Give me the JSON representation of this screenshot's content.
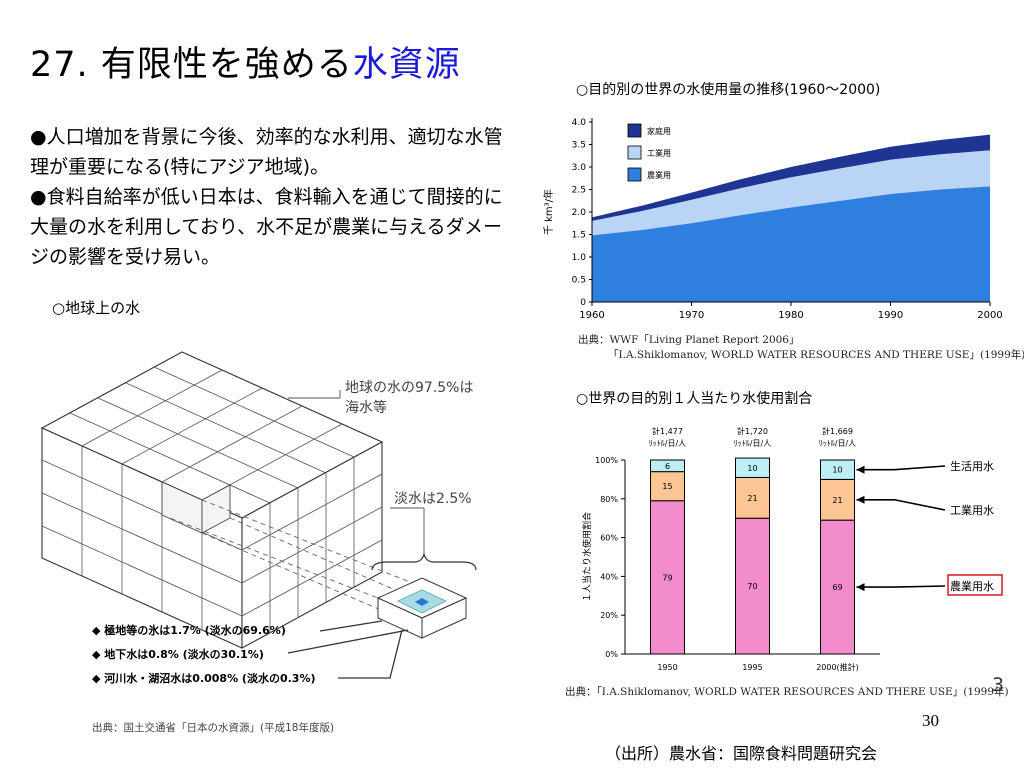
{
  "title": {
    "main": "27. 有限性を強める",
    "accent": "水資源"
  },
  "bullets": [
    "●人口増加を背景に今後、効率的な水利用、適切な水管理が重要になる(特にアジア地域)。",
    "●食料自給率が低い日本は、食料輸入を通じて間接的に大量の水を利用しており、水不足が農業に与えるダメージの影響を受け易い。"
  ],
  "earth_water": {
    "heading": "○地球上の水",
    "callout_seawater_line1": "地球の水の97.5%は",
    "callout_seawater_line2": "海水等",
    "callout_freshwater": "淡水は2.5%",
    "items": [
      "◆ 極地等の氷は1.7% (淡水の69.6%)",
      "◆ 地下水は0.8% (淡水の30.1%)",
      "◆ 河川水・湖沼水は0.008% (淡水の0.3%)"
    ],
    "source": "出典：国土交通省「日本の水資源」(平成18年度版)"
  },
  "chart_data": [
    {
      "type": "area",
      "title": "○目的別の世界の水使用量の推移(1960〜2000)",
      "ylabel": "千 km³/年",
      "x": [
        1960,
        1965,
        1970,
        1975,
        1980,
        1985,
        1990,
        1995,
        2000
      ],
      "xticks": [
        "1960",
        "1970",
        "1980",
        "1990",
        "2000"
      ],
      "yticks": [
        "0",
        "0.5",
        "1.0",
        "1.5",
        "2.0",
        "2.5",
        "3.0",
        "3.5",
        "4.0"
      ],
      "ylim": [
        0,
        4.0
      ],
      "stacked": true,
      "series": [
        {
          "name": "農業用",
          "color": "#2e7fe0",
          "values": [
            1.48,
            1.6,
            1.75,
            1.93,
            2.1,
            2.25,
            2.4,
            2.5,
            2.57
          ]
        },
        {
          "name": "工業用",
          "color": "#b9d4f4",
          "values": [
            0.32,
            0.42,
            0.52,
            0.6,
            0.67,
            0.72,
            0.76,
            0.78,
            0.8
          ]
        },
        {
          "name": "家庭用",
          "color": "#1f3594",
          "values": [
            0.08,
            0.12,
            0.16,
            0.2,
            0.23,
            0.26,
            0.29,
            0.32,
            0.35
          ]
        }
      ],
      "legend": "top-left",
      "source_line1": "出典：WWF「Living Planet Report 2006」",
      "source_line2": "「I.A.Shiklomanov, WORLD WATER RESOURCES AND THERE USE」(1999年)"
    },
    {
      "type": "bar",
      "stacked": true,
      "title": "○世界の目的別１人当たり水使用割合",
      "ylabel": "１人当たり水使用割合",
      "categories": [
        "1950",
        "1995",
        "2000(推計)"
      ],
      "totals": [
        "計1,477",
        "計1,720",
        "計1,669"
      ],
      "totals_unit": "ﾘｯﾄﾙ/日/人",
      "yticks": [
        "0%",
        "20%",
        "40%",
        "60%",
        "80%",
        "100%"
      ],
      "ylim": [
        0,
        100
      ],
      "series": [
        {
          "name": "農業用水",
          "color": "#f28ccc",
          "values": [
            79,
            70,
            69
          ]
        },
        {
          "name": "工業用水",
          "color": "#fbc693",
          "values": [
            15,
            21,
            21
          ]
        },
        {
          "name": "生活用水",
          "color": "#bdeef6",
          "values": [
            6,
            10,
            10
          ]
        }
      ],
      "source": "出典：「I.A.Shiklomanov, WORLD WATER RESOURCES AND THERE USE」(1999年)"
    }
  ],
  "page": {
    "slide_number": "30",
    "side_number": "3",
    "attribution": "（出所）農水省：国際食料問題研究会"
  }
}
